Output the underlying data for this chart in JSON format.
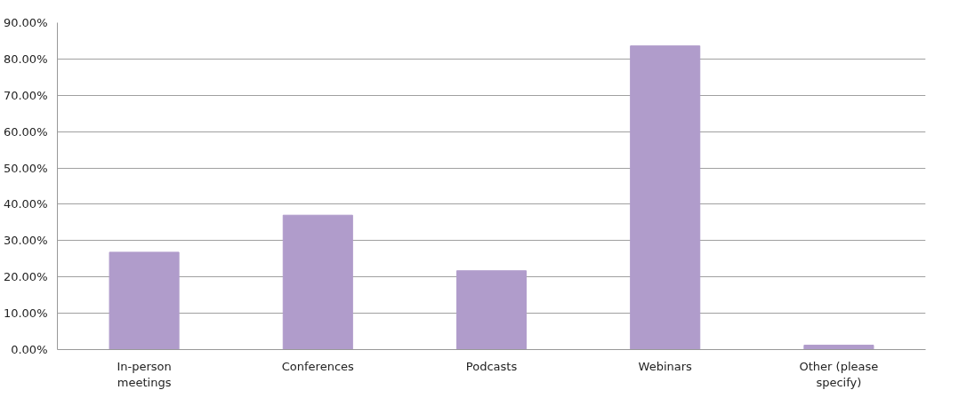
{
  "chart_data": {
    "type": "bar",
    "categories": [
      "In-person meetings",
      "Conferences",
      "Podcasts",
      "Webinars",
      "Other (please specify)"
    ],
    "values": [
      26.8,
      37.0,
      21.7,
      83.6,
      1.2
    ],
    "color": "#b09ccb",
    "ylim": [
      0,
      90
    ],
    "yticks": [
      {
        "value": 0,
        "label": "0.00%"
      },
      {
        "value": 10,
        "label": "10.00%"
      },
      {
        "value": 20,
        "label": "20.00%"
      },
      {
        "value": 30,
        "label": "30.00%"
      },
      {
        "value": 40,
        "label": "40.00%"
      },
      {
        "value": 50,
        "label": "50.00%"
      },
      {
        "value": 60,
        "label": "60.00%"
      },
      {
        "value": 70,
        "label": "70.00%"
      },
      {
        "value": 80,
        "label": "80.00%"
      },
      {
        "value": 90,
        "label": "90.00%"
      }
    ],
    "grid": "y"
  }
}
